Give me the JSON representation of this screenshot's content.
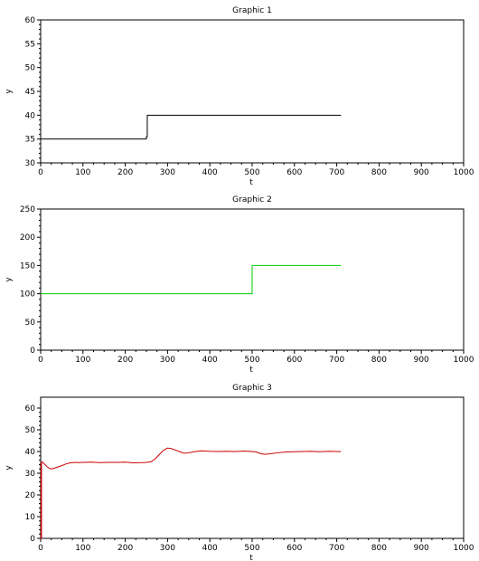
{
  "chart_data": [
    {
      "type": "line",
      "title": "Graphic 1",
      "xlabel": "t",
      "ylabel": "y",
      "xlim": [
        0,
        1000
      ],
      "ylim": [
        30,
        60
      ],
      "xticks": [
        0,
        100,
        200,
        300,
        400,
        500,
        600,
        700,
        800,
        900,
        1000
      ],
      "yticks": [
        30,
        35,
        40,
        45,
        50,
        55,
        60
      ],
      "grid": false,
      "series": [
        {
          "color": "#000000",
          "x": [
            0,
            250,
            250,
            252,
            252,
            710
          ],
          "y": [
            35,
            35,
            35.5,
            35.5,
            40,
            40
          ]
        }
      ]
    },
    {
      "type": "line",
      "title": "Graphic 2",
      "xlabel": "t",
      "ylabel": "y",
      "xlim": [
        0,
        1000
      ],
      "ylim": [
        0,
        250
      ],
      "xticks": [
        0,
        100,
        200,
        300,
        400,
        500,
        600,
        700,
        800,
        900,
        1000
      ],
      "yticks": [
        0,
        50,
        100,
        150,
        200,
        250
      ],
      "grid": false,
      "series": [
        {
          "color": "#00cc00",
          "x": [
            0,
            500,
            500,
            710
          ],
          "y": [
            100,
            100,
            150,
            150
          ]
        }
      ]
    },
    {
      "type": "line",
      "title": "Graphic 3",
      "xlabel": "t",
      "ylabel": "y",
      "xlim": [
        0,
        1000
      ],
      "ylim": [
        0,
        65
      ],
      "xticks": [
        0,
        100,
        200,
        300,
        400,
        500,
        600,
        700,
        800,
        900,
        1000
      ],
      "yticks": [
        0,
        10,
        20,
        30,
        40,
        50,
        60
      ],
      "grid": false,
      "series": [
        {
          "color": "#cc0000",
          "x": [
            0,
            1,
            1,
            2,
            2,
            4,
            6,
            8,
            10,
            15,
            20,
            25,
            30,
            40,
            50,
            60,
            70,
            80,
            90,
            100,
            120,
            140,
            160,
            180,
            200,
            220,
            240,
            250,
            260,
            270,
            280,
            290,
            300,
            310,
            320,
            330,
            340,
            350,
            360,
            370,
            380,
            400,
            420,
            440,
            460,
            480,
            500,
            510,
            520,
            530,
            540,
            560,
            580,
            600,
            620,
            640,
            660,
            680,
            700,
            710
          ],
          "y": [
            35,
            35,
            0,
            0,
            35,
            35.2,
            34.8,
            34.5,
            34,
            33,
            32.3,
            32,
            32.2,
            32.8,
            33.5,
            34.3,
            34.8,
            35,
            34.9,
            35,
            35.1,
            34.9,
            35,
            35,
            35.1,
            34.8,
            34.9,
            35,
            35.2,
            36.5,
            38.5,
            40.5,
            41.6,
            41.3,
            40.6,
            39.8,
            39.2,
            39.4,
            39.8,
            40.1,
            40.3,
            40.1,
            40,
            40.1,
            40,
            40.2,
            40,
            39.8,
            39,
            38.7,
            38.9,
            39.4,
            39.8,
            39.9,
            40,
            40.1,
            39.9,
            40.1,
            40,
            40
          ]
        }
      ]
    }
  ]
}
